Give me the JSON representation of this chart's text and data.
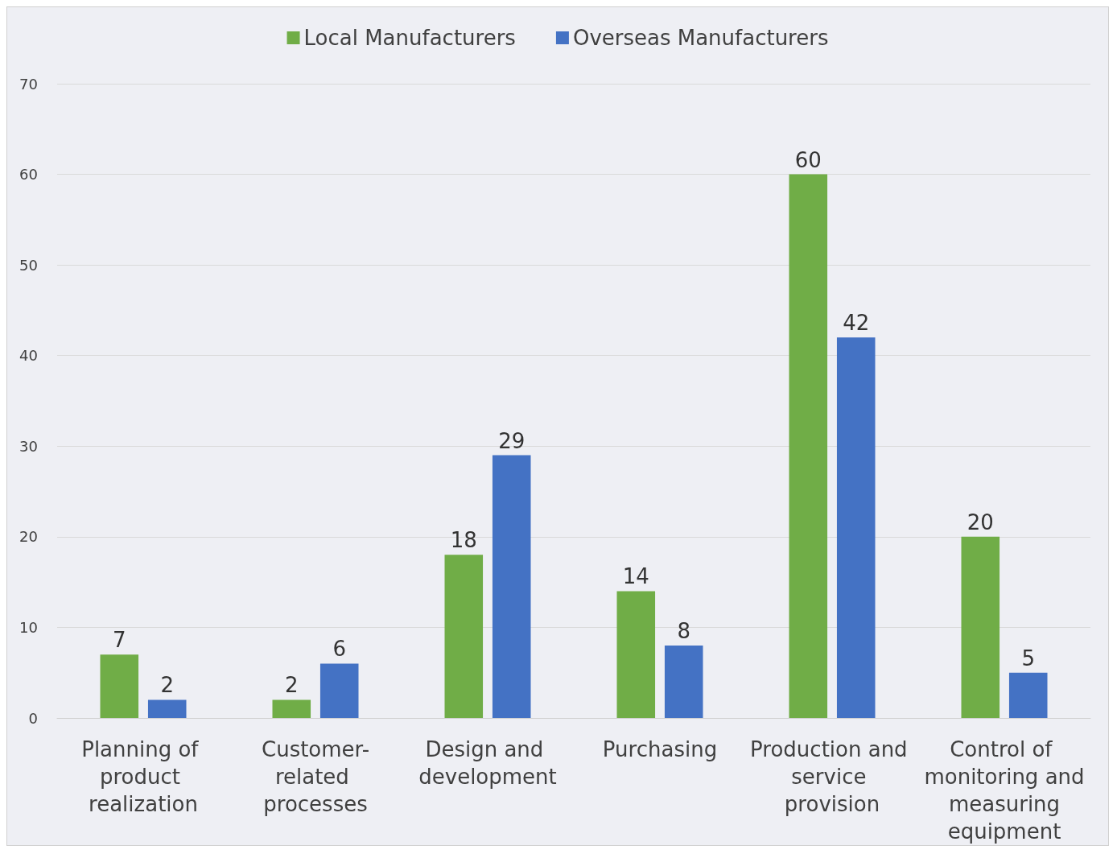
{
  "chart_data": {
    "type": "bar",
    "categories": [
      "Planning of product realization",
      "Customer-related processes",
      "Design and development",
      "Purchasing",
      "Production and service provision",
      "Control of monitoring and measuring equipment"
    ],
    "series": [
      {
        "name": "Local Manufacturers",
        "color": "#70ad47",
        "values": [
          7,
          2,
          18,
          14,
          60,
          20
        ]
      },
      {
        "name": "Overseas Manufacturers",
        "color": "#4472c4",
        "values": [
          2,
          6,
          29,
          8,
          42,
          5
        ]
      }
    ],
    "ylim": [
      0,
      70
    ],
    "yticks": [
      0,
      10,
      20,
      30,
      40,
      50,
      60,
      70
    ],
    "grid": "y",
    "legend": "top",
    "data_labels": true
  }
}
